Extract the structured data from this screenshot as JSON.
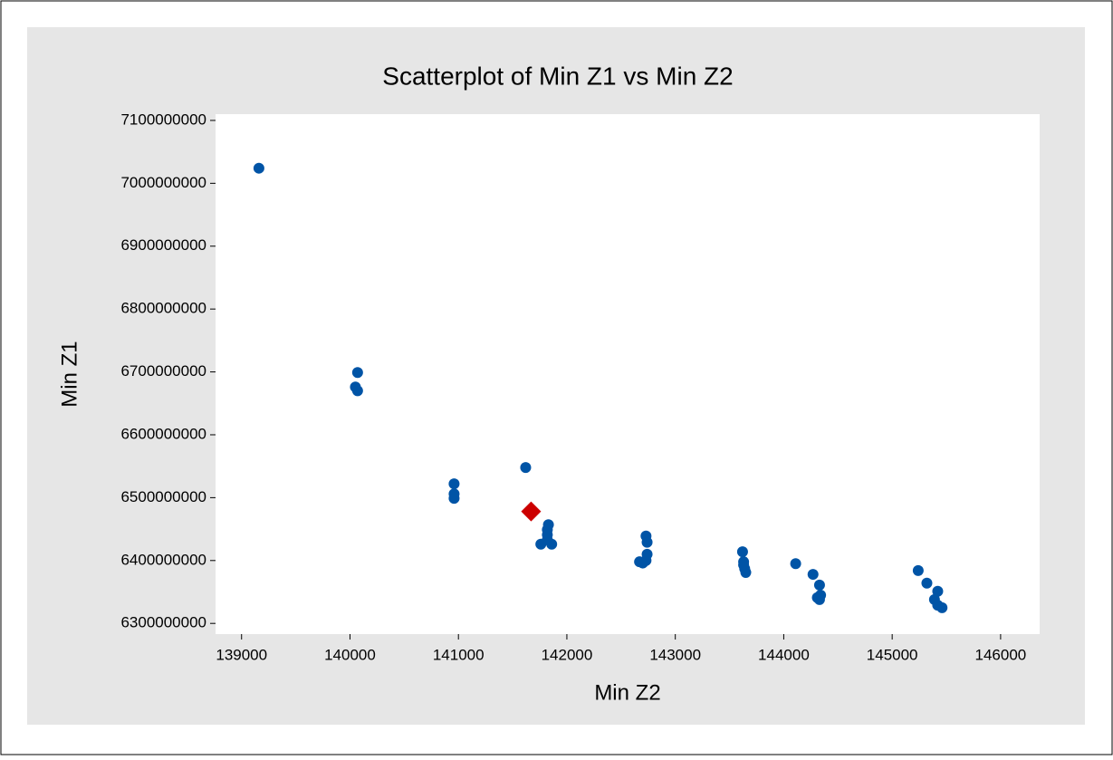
{
  "chart_data": {
    "type": "scatter",
    "title": "Scatterplot of Min Z1 vs Min Z2",
    "x_label": "Min Z2",
    "y_label": "Min Z1",
    "xlim": [
      138760,
      146360
    ],
    "xticks": [
      139000,
      140000,
      141000,
      142000,
      143000,
      144000,
      145000,
      146000
    ],
    "ylim": [
      6283000000,
      7110000000
    ],
    "yticks": [
      6300000000,
      6400000000,
      6500000000,
      6600000000,
      6700000000,
      6800000000,
      6900000000,
      7000000000,
      7100000000
    ],
    "series": [
      {
        "color": "#0054a6",
        "marker": "circle",
        "x": [
          139160,
          140070,
          140050,
          140070,
          140960,
          140960,
          140960,
          141620,
          141830,
          141820,
          141820,
          141860,
          141760,
          141820,
          142670,
          142700,
          142730,
          142740,
          142740,
          142730,
          143620,
          143630,
          143640,
          143650,
          143630,
          144110,
          144270,
          144330,
          144340,
          144310,
          144330,
          145240,
          145320,
          145420,
          145390,
          145420,
          145460
        ],
        "values": [
          7024000000,
          6699000000,
          6676000000,
          6670000000,
          6522000000,
          6506000000,
          6499000000,
          6548000000,
          6457000000,
          6441000000,
          6433000000,
          6426000000,
          6426000000,
          6449000000,
          6398000000,
          6396000000,
          6400000000,
          6410000000,
          6429000000,
          6439000000,
          6414000000,
          6398000000,
          6387000000,
          6381000000,
          6393000000,
          6395000000,
          6378000000,
          6361000000,
          6345000000,
          6341000000,
          6338000000,
          6384000000,
          6364000000,
          6351000000,
          6338000000,
          6329000000,
          6325000000
        ]
      },
      {
        "color": "#cc0000",
        "marker": "diamond",
        "x": [
          141670
        ],
        "values": [
          6478000000
        ]
      }
    ]
  }
}
